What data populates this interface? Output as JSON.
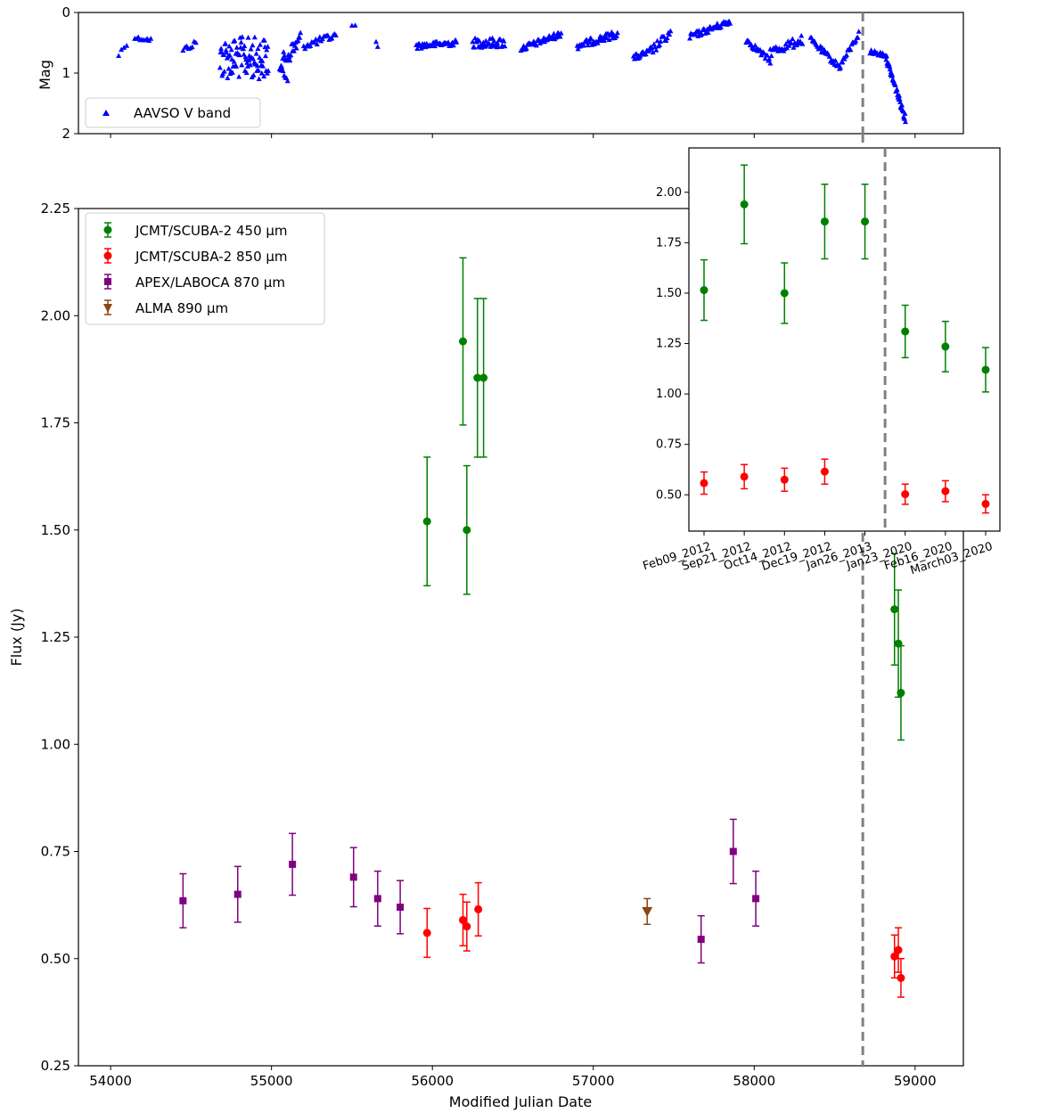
{
  "chart_data": [
    {
      "type": "scatter",
      "panel": "top",
      "ylabel": "Mag",
      "xlim": [
        53800,
        59300
      ],
      "ylim": [
        0,
        2
      ],
      "y_inverted": true,
      "yticks": [
        "0",
        "1",
        "2"
      ],
      "legend_location": "lower-left",
      "series": [
        {
          "name": "AAVSO V band",
          "color": "#0000ff",
          "marker": "triangle-up",
          "clusters": [
            {
              "x0": 54050,
              "x1": 54100,
              "y0": 0.7,
              "y1": 0.5,
              "n": 4,
              "noise": 0.05
            },
            {
              "x0": 54150,
              "x1": 54250,
              "y0": 0.42,
              "y1": 0.45,
              "n": 10,
              "noise": 0.03
            },
            {
              "x0": 54450,
              "x1": 54530,
              "y0": 0.62,
              "y1": 0.5,
              "n": 8,
              "noise": 0.05
            },
            {
              "x0": 54680,
              "x1": 54980,
              "y0": 0.75,
              "y1": 0.75,
              "n": 90,
              "noise": 0.35
            },
            {
              "x0": 55050,
              "x1": 55100,
              "y0": 0.95,
              "y1": 1.05,
              "n": 8,
              "noise": 0.08
            },
            {
              "x0": 55060,
              "x1": 55180,
              "y0": 0.85,
              "y1": 0.45,
              "n": 25,
              "noise": 0.15
            },
            {
              "x0": 55200,
              "x1": 55400,
              "y0": 0.55,
              "y1": 0.38,
              "n": 25,
              "noise": 0.06
            },
            {
              "x0": 55500,
              "x1": 55520,
              "y0": 0.2,
              "y1": 0.22,
              "n": 2,
              "noise": 0.02
            },
            {
              "x0": 55650,
              "x1": 55660,
              "y0": 0.5,
              "y1": 0.55,
              "n": 2,
              "noise": 0.02
            },
            {
              "x0": 55900,
              "x1": 56150,
              "y0": 0.55,
              "y1": 0.5,
              "n": 40,
              "noise": 0.05
            },
            {
              "x0": 56250,
              "x1": 56450,
              "y0": 0.5,
              "y1": 0.5,
              "n": 40,
              "noise": 0.08
            },
            {
              "x0": 56550,
              "x1": 56800,
              "y0": 0.6,
              "y1": 0.35,
              "n": 45,
              "noise": 0.05
            },
            {
              "x0": 56900,
              "x1": 57150,
              "y0": 0.55,
              "y1": 0.35,
              "n": 50,
              "noise": 0.06
            },
            {
              "x0": 57250,
              "x1": 57350,
              "y0": 0.75,
              "y1": 0.65,
              "n": 18,
              "noise": 0.05
            },
            {
              "x0": 57350,
              "x1": 57480,
              "y0": 0.65,
              "y1": 0.35,
              "n": 20,
              "noise": 0.08
            },
            {
              "x0": 57600,
              "x1": 57850,
              "y0": 0.4,
              "y1": 0.15,
              "n": 45,
              "noise": 0.05
            },
            {
              "x0": 57950,
              "x1": 58100,
              "y0": 0.45,
              "y1": 0.8,
              "n": 25,
              "noise": 0.05
            },
            {
              "x0": 58100,
              "x1": 58300,
              "y0": 0.65,
              "y1": 0.45,
              "n": 30,
              "noise": 0.08
            },
            {
              "x0": 58350,
              "x1": 58530,
              "y0": 0.45,
              "y1": 0.9,
              "n": 30,
              "noise": 0.05
            },
            {
              "x0": 58530,
              "x1": 58650,
              "y0": 0.9,
              "y1": 0.35,
              "n": 20,
              "noise": 0.05
            },
            {
              "x0": 58720,
              "x1": 58820,
              "y0": 0.65,
              "y1": 0.7,
              "n": 15,
              "noise": 0.04
            },
            {
              "x0": 58820,
              "x1": 58940,
              "y0": 0.75,
              "y1": 1.75,
              "n": 45,
              "noise": 0.06
            }
          ]
        }
      ],
      "vline_x": 58675
    },
    {
      "type": "scatter",
      "panel": "main",
      "xlabel": "Modified Julian Date",
      "ylabel": "Flux (Jy)",
      "xlim": [
        53800,
        59300
      ],
      "ylim": [
        0.25,
        2.25
      ],
      "xticks": [
        "54000",
        "55000",
        "56000",
        "57000",
        "58000",
        "59000"
      ],
      "yticks": [
        "0.25",
        "0.50",
        "0.75",
        "1.00",
        "1.25",
        "1.50",
        "1.75",
        "2.00",
        "2.25"
      ],
      "legend_location": "upper-left",
      "vline_x": 58675,
      "series": [
        {
          "name": "JCMT/SCUBA-2 450 μm",
          "color": "#008000",
          "marker": "circle",
          "points": [
            {
              "x": 55967,
              "y": 1.52,
              "err": 0.15
            },
            {
              "x": 56190,
              "y": 1.94,
              "err": 0.195
            },
            {
              "x": 56214,
              "y": 1.5,
              "err": 0.15
            },
            {
              "x": 56280,
              "y": 1.855,
              "err": 0.185
            },
            {
              "x": 56318,
              "y": 1.855,
              "err": 0.185
            },
            {
              "x": 58872,
              "y": 1.315,
              "err": 0.13
            },
            {
              "x": 58896,
              "y": 1.235,
              "err": 0.125
            },
            {
              "x": 58912,
              "y": 1.12,
              "err": 0.11
            }
          ]
        },
        {
          "name": "JCMT/SCUBA-2 850 μm",
          "color": "#ff0000",
          "marker": "circle",
          "points": [
            {
              "x": 55967,
              "y": 0.56,
              "err": 0.057
            },
            {
              "x": 56190,
              "y": 0.59,
              "err": 0.06
            },
            {
              "x": 56214,
              "y": 0.575,
              "err": 0.057
            },
            {
              "x": 56285,
              "y": 0.615,
              "err": 0.062
            },
            {
              "x": 58872,
              "y": 0.505,
              "err": 0.05
            },
            {
              "x": 58896,
              "y": 0.52,
              "err": 0.052
            },
            {
              "x": 58912,
              "y": 0.455,
              "err": 0.045
            }
          ]
        },
        {
          "name": "APEX/LABOCA 870 μm",
          "color": "#800080",
          "marker": "square",
          "points": [
            {
              "x": 54450,
              "y": 0.635,
              "err": 0.063
            },
            {
              "x": 54790,
              "y": 0.65,
              "err": 0.065
            },
            {
              "x": 55130,
              "y": 0.72,
              "err": 0.072
            },
            {
              "x": 55510,
              "y": 0.69,
              "err": 0.069
            },
            {
              "x": 55660,
              "y": 0.64,
              "err": 0.064
            },
            {
              "x": 55800,
              "y": 0.62,
              "err": 0.062
            },
            {
              "x": 57670,
              "y": 0.545,
              "err": 0.055
            },
            {
              "x": 57870,
              "y": 0.75,
              "err": 0.075
            },
            {
              "x": 58010,
              "y": 0.64,
              "err": 0.064
            }
          ]
        },
        {
          "name": "ALMA 890 μm",
          "color": "#8b4513",
          "marker": "triangle-down",
          "points": [
            {
              "x": 57335,
              "y": 0.61,
              "err": 0.03
            }
          ]
        }
      ]
    },
    {
      "type": "scatter",
      "panel": "inset",
      "categories": [
        "Feb09_2012",
        "Sep21_2012",
        "Oct14_2012",
        "Dec19_2012",
        "Jan26_2013",
        "Jan23_2020",
        "Feb16_2020",
        "March03_2020"
      ],
      "ylim": [
        0.32,
        2.22
      ],
      "yticks": [
        "0.50",
        "0.75",
        "1.00",
        "1.25",
        "1.50",
        "1.75",
        "2.00"
      ],
      "vline_after_index": 4,
      "series": [
        {
          "color": "#008000",
          "values": [
            1.515,
            1.94,
            1.5,
            1.855,
            1.855,
            1.31,
            1.235,
            1.12
          ],
          "errors": [
            0.15,
            0.195,
            0.15,
            0.185,
            0.185,
            0.13,
            0.125,
            0.11
          ]
        },
        {
          "color": "#ff0000",
          "values": [
            0.558,
            0.59,
            0.575,
            0.615,
            null,
            0.503,
            0.518,
            0.455
          ],
          "errors": [
            0.055,
            0.06,
            0.057,
            0.062,
            null,
            0.05,
            0.052,
            0.045
          ]
        }
      ]
    }
  ]
}
